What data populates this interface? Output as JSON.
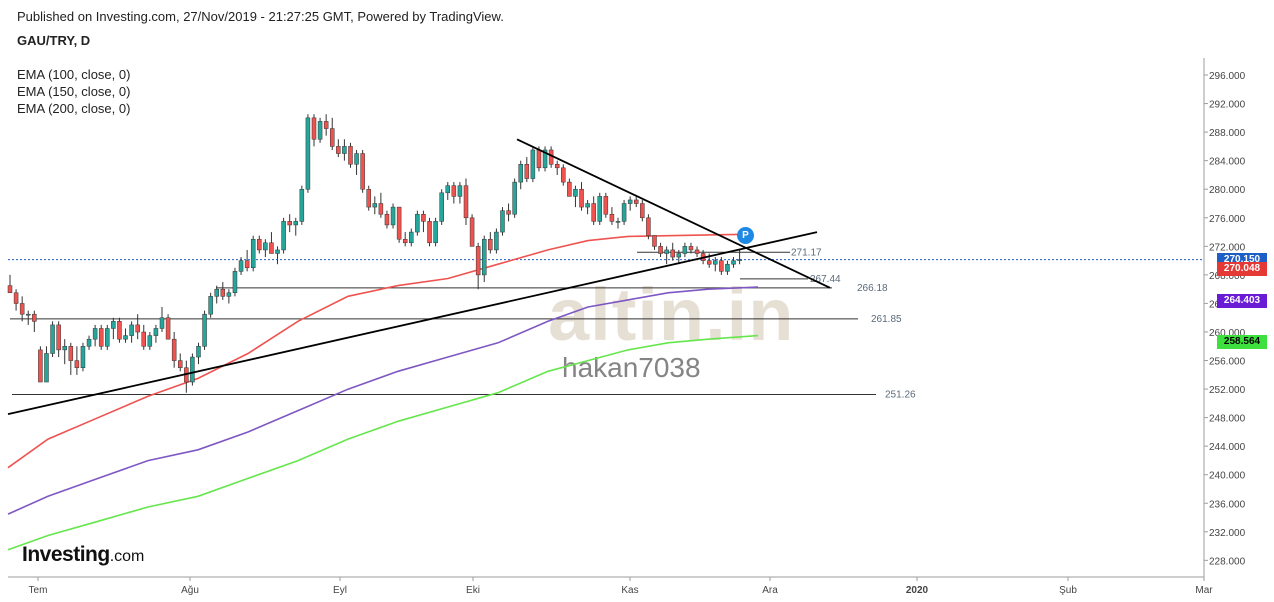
{
  "header": {
    "published": "Published on Investing.com, 27/Nov/2019 - 21:27:25 GMT, Powered by TradingView.",
    "symbol": "GAU/TRY, D"
  },
  "legend": [
    "EMA (100, close, 0)",
    "EMA (150, close, 0)",
    "EMA (200, close, 0)"
  ],
  "branding": {
    "logo": "Investing",
    "logo_suffix": ".com"
  },
  "watermark": {
    "site": "altin.in",
    "user": "hakan7038"
  },
  "badge": "P",
  "colors": {
    "up": "#26a69a",
    "down": "#ef5350",
    "ema100": "#ef5350",
    "ema150": "#7e57c2",
    "ema200": "#66e64d",
    "last_price": "#1e5fc7",
    "ema100_tag": "#e53935",
    "ema150_tag": "#6a1bd6",
    "ema200_tag": "#3ee03e"
  },
  "chart_data": {
    "type": "candlestick",
    "ylim": [
      226,
      298
    ],
    "y_ticks": [
      "296.000",
      "292.000",
      "288.000",
      "284.000",
      "280.000",
      "276.000",
      "272.000",
      "268.000",
      "264.000",
      "260.000",
      "256.000",
      "252.000",
      "248.000",
      "244.000",
      "240.000",
      "236.000",
      "232.000",
      "228.000"
    ],
    "x_ticks": [
      "Tem",
      "Ağu",
      "Eyl",
      "Eki",
      "Kas",
      "Ara",
      "2020",
      "Şub",
      "Mar"
    ],
    "price_tags": [
      {
        "label": "270.150",
        "value": 270.15,
        "color_key": "last_price"
      },
      {
        "label": "270.048",
        "value": 268.8,
        "color_key": "ema100_tag"
      },
      {
        "label": "264.403",
        "value": 264.403,
        "color_key": "ema150_tag"
      },
      {
        "label": "258.564",
        "value": 258.564,
        "color_key": "ema200_tag"
      }
    ],
    "horizontal_levels": [
      {
        "value": 271.17,
        "label": "271.17"
      },
      {
        "value": 267.44,
        "label": "267.44"
      },
      {
        "value": 266.18,
        "label": "266.18"
      },
      {
        "value": 261.85,
        "label": "261.85"
      },
      {
        "value": 251.26,
        "label": "251.26"
      }
    ],
    "candles": [
      [
        266.5,
        268.0,
        265.5,
        265.5
      ],
      [
        265.5,
        266.0,
        263.0,
        264.0
      ],
      [
        264.0,
        265.0,
        261.5,
        262.5
      ],
      [
        262.5,
        263.0,
        261.0,
        262.5
      ],
      [
        262.5,
        263.0,
        260.0,
        261.5
      ],
      [
        257.5,
        258.0,
        253.0,
        253.0
      ],
      [
        253.0,
        258.0,
        253.0,
        257.0
      ],
      [
        257.0,
        261.5,
        256.5,
        261.0
      ],
      [
        261.0,
        261.5,
        256.5,
        257.5
      ],
      [
        257.5,
        259.0,
        255.5,
        258.0
      ],
      [
        258.0,
        258.5,
        254.0,
        256.0
      ],
      [
        256.0,
        258.0,
        254.0,
        255.0
      ],
      [
        255.0,
        258.5,
        254.5,
        258.0
      ],
      [
        258.0,
        259.5,
        257.5,
        259.0
      ],
      [
        259.0,
        261.0,
        258.0,
        260.5
      ],
      [
        260.5,
        261.0,
        257.5,
        258.0
      ],
      [
        258.0,
        261.0,
        257.5,
        260.5
      ],
      [
        260.5,
        262.0,
        259.0,
        261.5
      ],
      [
        261.5,
        262.0,
        258.5,
        259.0
      ],
      [
        259.0,
        260.5,
        258.5,
        259.5
      ],
      [
        259.5,
        261.5,
        258.5,
        261.0
      ],
      [
        261.0,
        262.5,
        259.0,
        260.0
      ],
      [
        260.0,
        261.0,
        257.5,
        258.0
      ],
      [
        258.0,
        260.0,
        257.5,
        259.5
      ],
      [
        259.5,
        261.0,
        258.5,
        260.5
      ],
      [
        260.5,
        263.5,
        260.0,
        262.0
      ],
      [
        262.0,
        262.5,
        259.0,
        259.0
      ],
      [
        259.0,
        260.0,
        255.0,
        256.0
      ],
      [
        256.0,
        257.0,
        254.5,
        255.0
      ],
      [
        255.0,
        256.0,
        251.5,
        253.0
      ],
      [
        253.0,
        257.0,
        252.5,
        256.5
      ],
      [
        256.5,
        258.5,
        255.5,
        258.0
      ],
      [
        258.0,
        263.0,
        257.5,
        262.5
      ],
      [
        262.5,
        265.5,
        262.0,
        265.0
      ],
      [
        265.0,
        266.5,
        264.0,
        266.0
      ],
      [
        266.0,
        267.0,
        264.5,
        265.0
      ],
      [
        265.0,
        266.0,
        264.0,
        265.5
      ],
      [
        265.5,
        269.0,
        265.0,
        268.5
      ],
      [
        268.5,
        270.5,
        268.0,
        270.0
      ],
      [
        270.0,
        271.5,
        268.5,
        269.0
      ],
      [
        269.0,
        273.5,
        268.5,
        273.0
      ],
      [
        273.0,
        273.5,
        271.0,
        271.5
      ],
      [
        271.5,
        273.0,
        270.5,
        272.5
      ],
      [
        272.5,
        274.0,
        271.0,
        271.0
      ],
      [
        271.0,
        272.0,
        269.5,
        271.5
      ],
      [
        271.5,
        276.0,
        271.0,
        275.5
      ],
      [
        275.5,
        276.5,
        274.0,
        275.0
      ],
      [
        275.0,
        276.0,
        273.5,
        275.5
      ],
      [
        275.5,
        280.5,
        275.0,
        280.0
      ],
      [
        280.0,
        290.5,
        279.5,
        290.0
      ],
      [
        290.0,
        290.5,
        286.0,
        287.0
      ],
      [
        287.0,
        290.0,
        286.5,
        289.5
      ],
      [
        289.5,
        290.5,
        287.5,
        288.5
      ],
      [
        288.5,
        290.0,
        285.5,
        286.0
      ],
      [
        286.0,
        287.0,
        284.5,
        285.0
      ],
      [
        285.0,
        287.0,
        284.0,
        286.0
      ],
      [
        286.0,
        286.5,
        283.0,
        283.5
      ],
      [
        283.5,
        285.5,
        282.0,
        285.0
      ],
      [
        285.0,
        285.5,
        279.5,
        280.0
      ],
      [
        280.0,
        280.5,
        277.0,
        277.5
      ],
      [
        277.5,
        279.0,
        276.5,
        278.0
      ],
      [
        278.0,
        279.5,
        276.0,
        276.5
      ],
      [
        276.5,
        277.0,
        274.5,
        275.0
      ],
      [
        275.0,
        278.0,
        274.5,
        277.5
      ],
      [
        277.5,
        277.5,
        272.5,
        273.0
      ],
      [
        273.0,
        274.0,
        272.0,
        272.5
      ],
      [
        272.5,
        274.5,
        272.0,
        274.0
      ],
      [
        274.0,
        277.0,
        273.5,
        276.5
      ],
      [
        276.5,
        277.0,
        274.0,
        275.5
      ],
      [
        275.5,
        276.0,
        272.0,
        272.5
      ],
      [
        272.5,
        276.0,
        272.0,
        275.5
      ],
      [
        275.5,
        280.0,
        275.0,
        279.5
      ],
      [
        279.5,
        281.0,
        278.5,
        280.5
      ],
      [
        280.5,
        281.0,
        278.0,
        279.0
      ],
      [
        279.0,
        281.0,
        278.0,
        280.5
      ],
      [
        280.5,
        281.5,
        275.0,
        276.0
      ],
      [
        276.0,
        276.5,
        272.0,
        272.0
      ],
      [
        272.0,
        272.5,
        266.0,
        268.0
      ],
      [
        268.0,
        273.5,
        267.0,
        273.0
      ],
      [
        273.0,
        274.0,
        271.0,
        271.5
      ],
      [
        271.5,
        274.5,
        271.0,
        274.0
      ],
      [
        274.0,
        277.5,
        273.5,
        277.0
      ],
      [
        277.0,
        278.0,
        275.5,
        276.5
      ],
      [
        276.5,
        281.5,
        276.0,
        281.0
      ],
      [
        281.0,
        284.0,
        280.0,
        283.5
      ],
      [
        283.5,
        284.5,
        281.0,
        281.5
      ],
      [
        281.5,
        286.0,
        281.0,
        285.5
      ],
      [
        285.5,
        286.0,
        282.5,
        283.0
      ],
      [
        283.0,
        286.0,
        282.5,
        285.5
      ],
      [
        285.5,
        286.0,
        283.0,
        283.5
      ],
      [
        283.5,
        284.0,
        282.0,
        283.0
      ],
      [
        283.0,
        283.5,
        280.5,
        281.0
      ],
      [
        281.0,
        281.5,
        279.0,
        279.0
      ],
      [
        279.0,
        280.5,
        277.5,
        280.0
      ],
      [
        280.0,
        281.0,
        277.0,
        277.5
      ],
      [
        277.5,
        278.5,
        276.5,
        278.0
      ],
      [
        278.0,
        279.0,
        275.0,
        275.5
      ],
      [
        275.5,
        279.5,
        275.0,
        279.0
      ],
      [
        279.0,
        279.5,
        276.0,
        276.5
      ],
      [
        276.5,
        277.5,
        275.0,
        275.5
      ],
      [
        275.5,
        276.0,
        274.5,
        275.5
      ],
      [
        275.5,
        278.5,
        275.0,
        278.0
      ],
      [
        278.0,
        279.0,
        277.0,
        278.5
      ],
      [
        278.5,
        279.0,
        277.5,
        278.0
      ],
      [
        278.0,
        278.5,
        275.5,
        276.0
      ],
      [
        276.0,
        276.5,
        273.0,
        273.5
      ],
      [
        273.5,
        273.5,
        271.5,
        272.0
      ],
      [
        272.0,
        272.5,
        270.5,
        271.0
      ],
      [
        271.0,
        272.0,
        269.5,
        271.5
      ],
      [
        271.5,
        272.5,
        270.0,
        270.5
      ],
      [
        270.5,
        271.5,
        269.5,
        271.0
      ],
      [
        271.0,
        272.5,
        270.5,
        272.0
      ],
      [
        272.0,
        272.5,
        271.0,
        271.5
      ],
      [
        271.5,
        272.0,
        270.5,
        271.0
      ],
      [
        271.0,
        271.5,
        269.5,
        270.0
      ],
      [
        270.0,
        271.0,
        269.0,
        269.5
      ],
      [
        269.5,
        270.5,
        268.5,
        270.0
      ],
      [
        270.0,
        270.5,
        268.0,
        268.5
      ],
      [
        268.5,
        270.0,
        268.0,
        269.5
      ],
      [
        269.5,
        270.5,
        269.0,
        270.0
      ],
      [
        270.0,
        271.5,
        269.5,
        270.15
      ]
    ],
    "ema100": [
      [
        0,
        241
      ],
      [
        40,
        245
      ],
      [
        90,
        248
      ],
      [
        140,
        251
      ],
      [
        190,
        253.5
      ],
      [
        240,
        257
      ],
      [
        290,
        261.5
      ],
      [
        340,
        265
      ],
      [
        390,
        266.5
      ],
      [
        440,
        267.5
      ],
      [
        490,
        269.5
      ],
      [
        540,
        271.5
      ],
      [
        580,
        272.8
      ],
      [
        620,
        273.4
      ],
      [
        660,
        273.5
      ],
      [
        700,
        273.6
      ],
      [
        745,
        273.7
      ]
    ],
    "ema150": [
      [
        0,
        234.5
      ],
      [
        40,
        237
      ],
      [
        90,
        239.5
      ],
      [
        140,
        242
      ],
      [
        190,
        243.5
      ],
      [
        240,
        246
      ],
      [
        290,
        249
      ],
      [
        340,
        252
      ],
      [
        390,
        254.5
      ],
      [
        440,
        256.5
      ],
      [
        490,
        258.5
      ],
      [
        540,
        261.5
      ],
      [
        580,
        263.5
      ],
      [
        620,
        264.5
      ],
      [
        660,
        265.5
      ],
      [
        700,
        266
      ],
      [
        750,
        266.3
      ]
    ],
    "ema200": [
      [
        0,
        229.5
      ],
      [
        40,
        231.5
      ],
      [
        90,
        233.5
      ],
      [
        140,
        235.5
      ],
      [
        190,
        237
      ],
      [
        240,
        239.5
      ],
      [
        290,
        242
      ],
      [
        340,
        245
      ],
      [
        390,
        247.5
      ],
      [
        440,
        249.5
      ],
      [
        490,
        251.5
      ],
      [
        540,
        254.5
      ],
      [
        580,
        256
      ],
      [
        620,
        257.5
      ],
      [
        660,
        258.5
      ],
      [
        700,
        259
      ],
      [
        750,
        259.5
      ]
    ],
    "trendlines": [
      {
        "x1": 8,
        "y1": 248.5,
        "x2": 817,
        "y2": 274.0
      },
      {
        "x1": 517,
        "y1": 287.0,
        "x2": 830,
        "y2": 266.2
      }
    ]
  }
}
